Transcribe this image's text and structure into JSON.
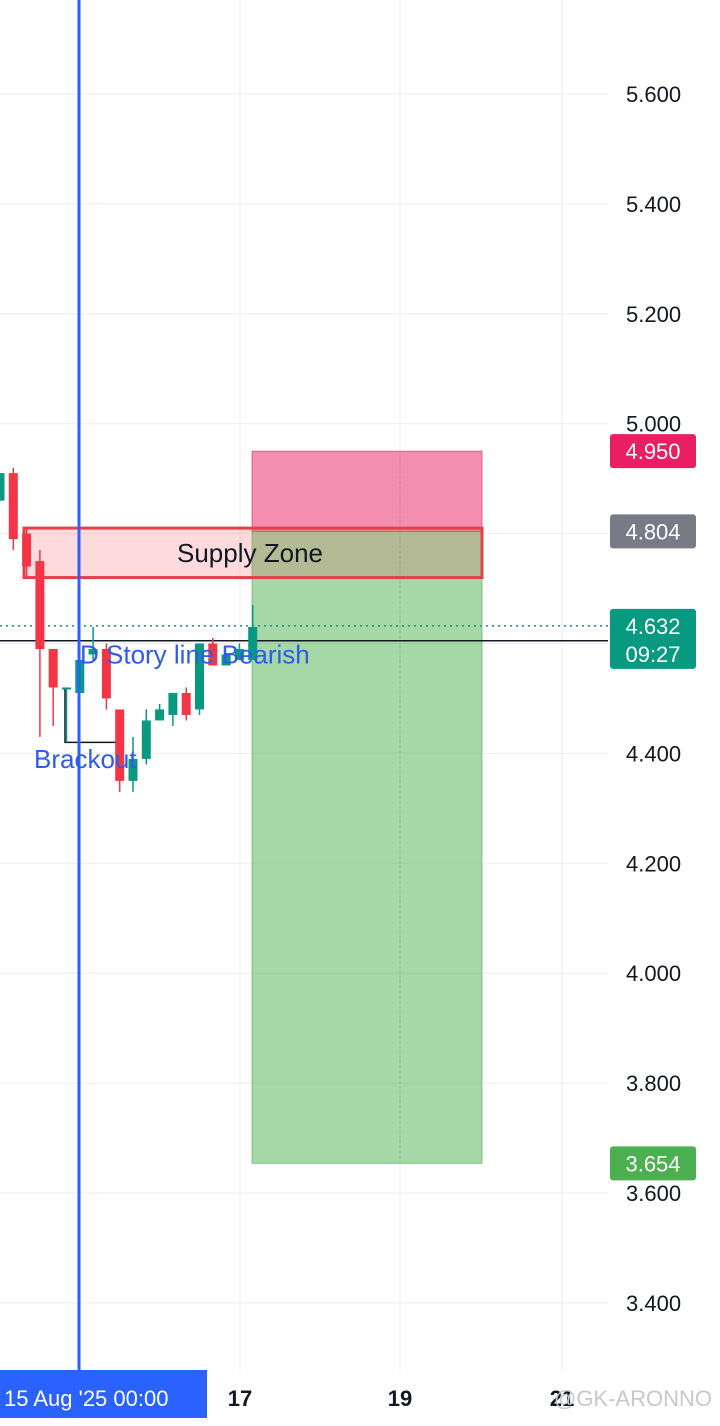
{
  "chart_data": {
    "type": "candlestick",
    "y_axis": {
      "ylim": [
        3.3,
        5.7
      ],
      "ticks": [
        "5.600",
        "5.400",
        "5.200",
        "5.000",
        "4.400",
        "4.200",
        "4.000",
        "3.800",
        "3.600",
        "3.400"
      ],
      "tick_values": [
        5.6,
        5.4,
        5.2,
        5.0,
        4.4,
        4.2,
        4.0,
        3.8,
        3.6,
        3.4
      ]
    },
    "x_axis": {
      "ticks": [
        "17",
        "19",
        "21"
      ],
      "selected_label": "15 Aug '25   00:00"
    },
    "price_tags": {
      "stop": {
        "text": "4.950",
        "value": 4.95,
        "color": "#e91e63"
      },
      "entry": {
        "text": "4.804",
        "value": 4.804,
        "color": "#787b86"
      },
      "current": {
        "text": "4.632",
        "value": 4.632,
        "countdown": "09:27",
        "color": "#089981"
      },
      "target": {
        "text": "3.654",
        "value": 3.654,
        "color": "#4caf50"
      }
    },
    "supply_zone": {
      "label": "Supply Zone",
      "top": 4.81,
      "bottom": 4.72
    },
    "position": {
      "entry": 4.804,
      "stop": 4.95,
      "target": 3.654
    },
    "horizontal_line": 4.605,
    "annotations": {
      "story_line": "D Story line Bearish",
      "breakout": "Brackout"
    },
    "candles": [
      {
        "o": 4.86,
        "h": 4.91,
        "l": 4.86,
        "c": 4.91
      },
      {
        "o": 4.91,
        "h": 4.92,
        "l": 4.77,
        "c": 4.79
      },
      {
        "o": 4.8,
        "h": 4.81,
        "l": 4.72,
        "c": 4.74
      },
      {
        "o": 4.75,
        "h": 4.77,
        "l": 4.43,
        "c": 4.59
      },
      {
        "o": 4.59,
        "h": 4.59,
        "l": 4.45,
        "c": 4.52
      },
      {
        "o": 4.52,
        "h": 4.52,
        "l": 4.42,
        "c": 4.52
      },
      {
        "o": 4.51,
        "h": 4.59,
        "l": 4.51,
        "c": 4.57
      },
      {
        "o": 4.58,
        "h": 4.63,
        "l": 4.57,
        "c": 4.59
      },
      {
        "o": 4.59,
        "h": 4.6,
        "l": 4.48,
        "c": 4.5
      },
      {
        "o": 4.48,
        "h": 4.48,
        "l": 4.33,
        "c": 4.35
      },
      {
        "o": 4.35,
        "h": 4.43,
        "l": 4.33,
        "c": 4.39
      },
      {
        "o": 4.39,
        "h": 4.48,
        "l": 4.38,
        "c": 4.46
      },
      {
        "o": 4.46,
        "h": 4.49,
        "l": 4.46,
        "c": 4.48
      },
      {
        "o": 4.47,
        "h": 4.51,
        "l": 4.45,
        "c": 4.51
      },
      {
        "o": 4.51,
        "h": 4.52,
        "l": 4.46,
        "c": 4.47
      },
      {
        "o": 4.48,
        "h": 4.6,
        "l": 4.47,
        "c": 4.6
      },
      {
        "o": 4.6,
        "h": 4.61,
        "l": 4.56,
        "c": 4.56
      },
      {
        "o": 4.56,
        "h": 4.58,
        "l": 4.56,
        "c": 4.58
      },
      {
        "o": 4.57,
        "h": 4.6,
        "l": 4.57,
        "c": 4.59
      },
      {
        "o": 4.57,
        "h": 4.67,
        "l": 4.57,
        "c": 4.63
      }
    ],
    "colors": {
      "up": "#089981",
      "down": "#f23645",
      "vline": "#2962ff",
      "grid": "#eeeeee"
    }
  },
  "watermark": "@GK-ARONNO"
}
